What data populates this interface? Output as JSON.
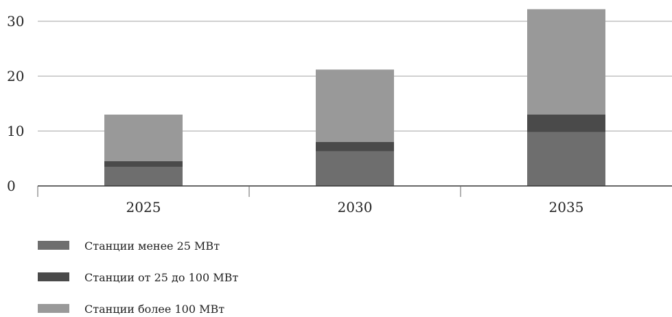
{
  "chart_data": {
    "type": "bar",
    "stacked": true,
    "categories": [
      "2025",
      "2030",
      "2035"
    ],
    "series": [
      {
        "name": "Станции менее 25 МВт",
        "values": [
          3.5,
          6.3,
          9.8
        ],
        "color": "#6e6e6e"
      },
      {
        "name": "Станции от 25 до 100 МВт",
        "values": [
          1.0,
          1.7,
          3.2
        ],
        "color": "#4a4a4a"
      },
      {
        "name": "Станции более 100 МВт",
        "values": [
          8.5,
          13.2,
          19.2
        ],
        "color": "#999999"
      }
    ],
    "yticks": [
      0,
      10,
      20,
      30
    ],
    "ylim": [
      0,
      33
    ],
    "grid": true,
    "legend_position": "bottom-left",
    "title": "",
    "xlabel": "",
    "ylabel": ""
  }
}
